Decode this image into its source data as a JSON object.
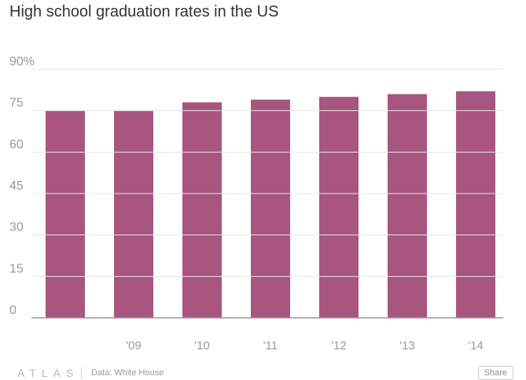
{
  "title": "High school graduation rates in the US",
  "chart_data": {
    "type": "bar",
    "categories": [
      "",
      "'09",
      "'10",
      "'11",
      "'12",
      "'13",
      "'14"
    ],
    "values": [
      75,
      75,
      78,
      79,
      80,
      81,
      82
    ],
    "yticks": [
      "0",
      "15",
      "30",
      "45",
      "60",
      "75",
      "90%"
    ],
    "ytick_values": [
      0,
      15,
      30,
      45,
      60,
      75,
      90
    ],
    "ylim": [
      0,
      90
    ],
    "grid": true,
    "bar_color": "#a8557f"
  },
  "footer": {
    "logo": "ATLAS",
    "source": "Data: White House",
    "share_label": "Share"
  }
}
